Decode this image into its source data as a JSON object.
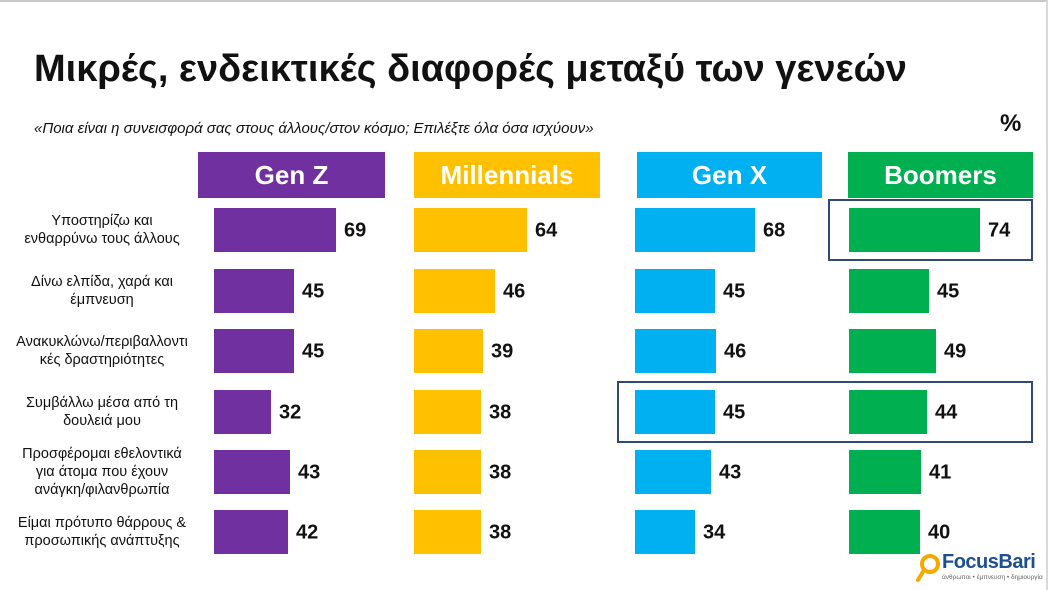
{
  "title": "Μικρές, ενδεικτικές διαφορές μεταξύ των γενεών",
  "subtitle": "«Ποια είναι η συνεισφορά σας στους άλλους/στον κόσμο; Επιλέξτε όλα όσα ισχύουν»",
  "unit": "%",
  "logo": {
    "name": "FocusBari",
    "tagline": "άνθρωποι • έμπνευση • δημιουργία"
  },
  "colors": {
    "genz": "#7030a0",
    "millennials": "#ffc000",
    "genx": "#00b0f0",
    "boomers": "#00b050",
    "highlight": "#2f4a73"
  },
  "chart_data": {
    "type": "bar",
    "orientation": "horizontal",
    "title": "Μικρές, ενδεικτικές διαφορές μεταξύ των γενεών",
    "subtitle": "«Ποια είναι η συνεισφορά σας στους άλλους/στον κόσμο; Επιλέξτε όλα όσα ισχύουν»",
    "unit": "%",
    "categories": [
      [
        "Υποστηρίζω και",
        "ενθαρρύνω τους άλλους"
      ],
      [
        "Δίνω ελπίδα, χαρά και",
        "έμπνευση"
      ],
      [
        "Ανακυκλώνω/περιβαλλοντι",
        "κές δραστηριότητες"
      ],
      [
        "Συμβάλλω μέσα από τη",
        "δουλειά μου"
      ],
      [
        "Προσφέρομαι εθελοντικά",
        "για άτομα που έχουν",
        "ανάγκη/φιλανθρωπία"
      ],
      [
        "Είμαι πρότυπο θάρρους &",
        "προσωπικής ανάπτυξης"
      ]
    ],
    "series": [
      {
        "name": "Gen Z",
        "color": "#7030a0",
        "values": [
          69,
          45,
          45,
          32,
          43,
          42
        ]
      },
      {
        "name": "Millennials",
        "color": "#ffc000",
        "values": [
          64,
          46,
          39,
          38,
          38,
          38
        ]
      },
      {
        "name": "Gen X",
        "color": "#00b0f0",
        "values": [
          68,
          45,
          46,
          45,
          43,
          34
        ]
      },
      {
        "name": "Boomers",
        "color": "#00b050",
        "values": [
          74,
          45,
          49,
          44,
          41,
          40
        ]
      }
    ],
    "highlights": [
      {
        "series": [
          "Boomers"
        ],
        "category_index": 0
      },
      {
        "series": [
          "Gen X",
          "Boomers"
        ],
        "category_index": 3
      }
    ],
    "grid": false,
    "legend": "top"
  }
}
